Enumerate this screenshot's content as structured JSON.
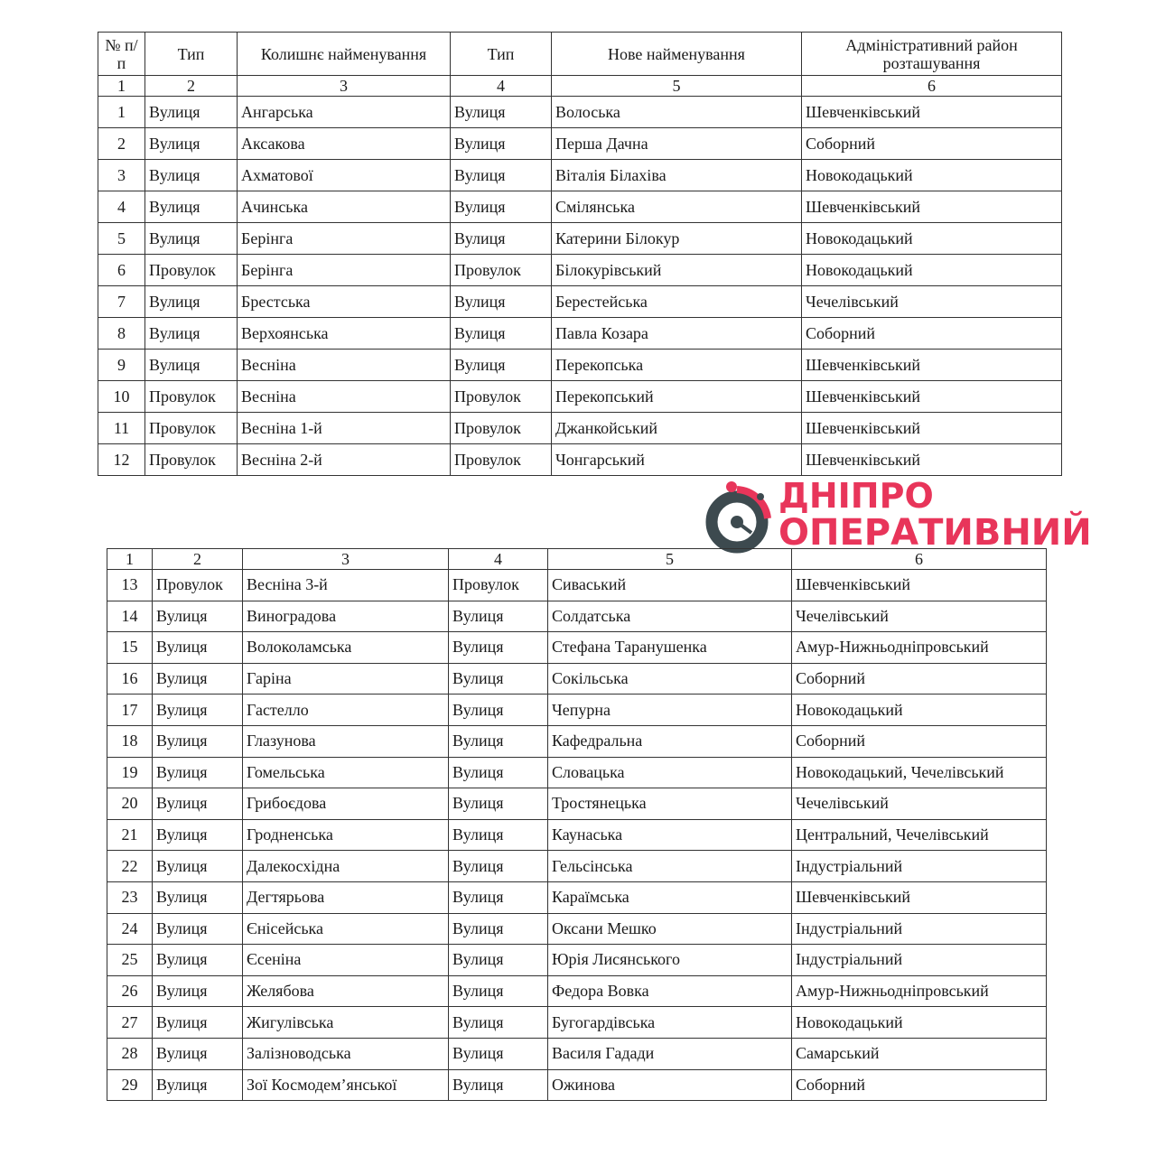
{
  "table1": {
    "headers": [
      "№ п/п",
      "Тип",
      "Колишнє найменування",
      "Тип",
      "Нове найменування",
      "Адміністративний район розташування"
    ],
    "column_numbers": [
      "1",
      "2",
      "3",
      "4",
      "5",
      "6"
    ],
    "rows": [
      [
        "1",
        "Вулиця",
        "Ангарська",
        "Вулиця",
        "Волоська",
        "Шевченківський"
      ],
      [
        "2",
        "Вулиця",
        "Аксакова",
        "Вулиця",
        "Перша Дачна",
        "Соборний"
      ],
      [
        "3",
        "Вулиця",
        "Ахматової",
        "Вулиця",
        "Віталія Білахіва",
        "Новокодацький"
      ],
      [
        "4",
        "Вулиця",
        "Ачинська",
        "Вулиця",
        "Смілянська",
        "Шевченківський"
      ],
      [
        "5",
        "Вулиця",
        "Берінга",
        "Вулиця",
        "Катерини Білокур",
        "Новокодацький"
      ],
      [
        "6",
        "Провулок",
        "Берінга",
        "Провулок",
        "Білокурівський",
        "Новокодацький"
      ],
      [
        "7",
        "Вулиця",
        "Брестська",
        "Вулиця",
        "Берестейська",
        "Чечелівський"
      ],
      [
        "8",
        "Вулиця",
        "Верхоянська",
        "Вулиця",
        "Павла Козара",
        "Соборний"
      ],
      [
        "9",
        "Вулиця",
        "Весніна",
        "Вулиця",
        "Перекопська",
        "Шевченківський"
      ],
      [
        "10",
        "Провулок",
        "Весніна",
        "Провулок",
        "Перекопський",
        "Шевченківський"
      ],
      [
        "11",
        "Провулок",
        "Весніна 1-й",
        "Провулок",
        "Джанкойський",
        "Шевченківський"
      ],
      [
        "12",
        "Провулок",
        "Весніна 2-й",
        "Провулок",
        "Чонгарський",
        "Шевченківський"
      ]
    ]
  },
  "table2": {
    "column_numbers": [
      "1",
      "2",
      "3",
      "4",
      "5",
      "6"
    ],
    "rows": [
      [
        "13",
        "Провулок",
        "Весніна 3-й",
        "Провулок",
        "Сиваський",
        "Шевченківський"
      ],
      [
        "14",
        "Вулиця",
        "Виноградова",
        "Вулиця",
        "Солдатська",
        "Чечелівський"
      ],
      [
        "15",
        "Вулиця",
        "Волоколамська",
        "Вулиця",
        "Стефана Таранушенка",
        "Амур-Нижньодніпровський"
      ],
      [
        "16",
        "Вулиця",
        "Гаріна",
        "Вулиця",
        "Сокільська",
        "Соборний"
      ],
      [
        "17",
        "Вулиця",
        "Гастелло",
        "Вулиця",
        "Чепурна",
        "Новокодацький"
      ],
      [
        "18",
        "Вулиця",
        "Глазунова",
        "Вулиця",
        "Кафедральна",
        "Соборний"
      ],
      [
        "19",
        "Вулиця",
        "Гомельська",
        "Вулиця",
        "Словацька",
        "Новокодацький, Чечелівський"
      ],
      [
        "20",
        "Вулиця",
        "Грибоєдова",
        "Вулиця",
        "Тростянецька",
        "Чечелівський"
      ],
      [
        "21",
        "Вулиця",
        "Гродненська",
        "Вулиця",
        "Каунаська",
        "Центральний, Чечелівський"
      ],
      [
        "22",
        "Вулиця",
        "Далекосхідна",
        "Вулиця",
        "Гельсінська",
        "Індустріальний"
      ],
      [
        "23",
        "Вулиця",
        "Дегтярьова",
        "Вулиця",
        "Караїмська",
        "Шевченківський"
      ],
      [
        "24",
        "Вулиця",
        "Єнісейська",
        "Вулиця",
        "Оксани Мешко",
        "Індустріальний"
      ],
      [
        "25",
        "Вулиця",
        "Єсеніна",
        "Вулиця",
        "Юрія Лисянського",
        "Індустріальний"
      ],
      [
        "26",
        "Вулиця",
        "Желябова",
        "Вулиця",
        "Федора Вовка",
        "Амур-Нижньодніпровський"
      ],
      [
        "27",
        "Вулиця",
        "Жигулівська",
        "Вулиця",
        "Бугогардівська",
        "Новокодацький"
      ],
      [
        "28",
        "Вулиця",
        "Залізноводська",
        "Вулиця",
        "Василя Гадади",
        "Самарський"
      ],
      [
        "29",
        "Вулиця",
        "Зої Космодем’янської",
        "Вулиця",
        "Ожинова",
        "Соборний"
      ]
    ]
  },
  "watermark": {
    "line1": "ДНІПРО",
    "line2": "ОПЕРАТИВНИЙ",
    "colors": {
      "red": "#e8355a",
      "gray": "#3d4a4f"
    }
  }
}
